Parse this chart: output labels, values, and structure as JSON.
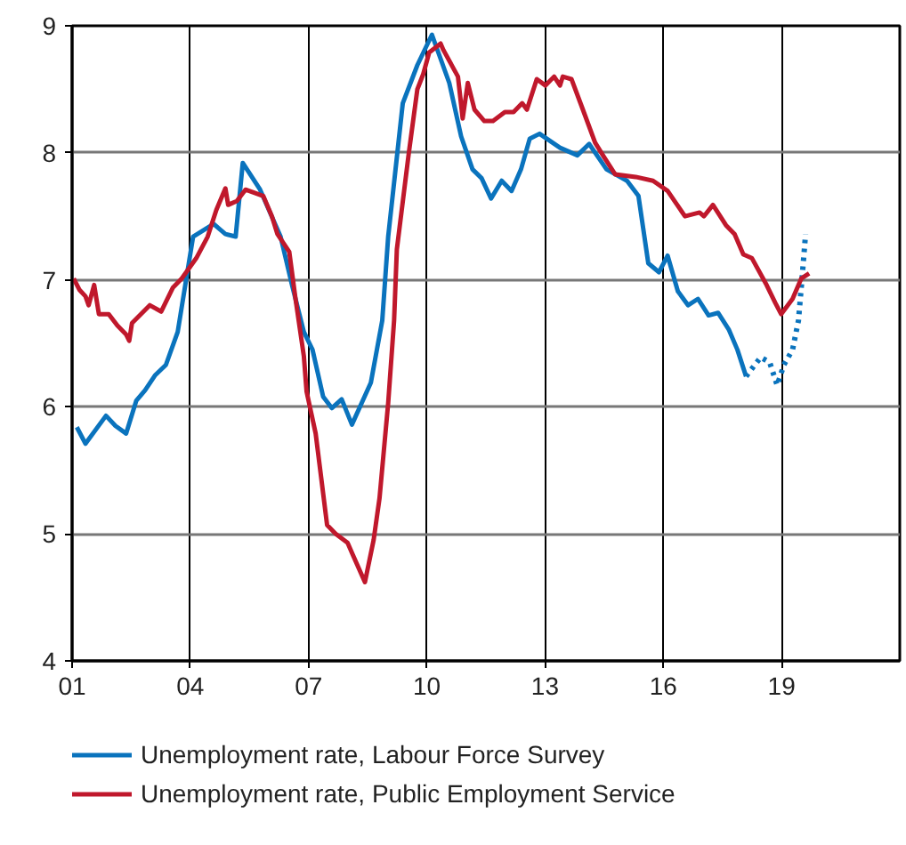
{
  "chart_data": {
    "type": "line",
    "xlim": [
      2001,
      2022
    ],
    "ylim": [
      4,
      9
    ],
    "xticks": [
      {
        "value": 2001,
        "label": "01"
      },
      {
        "value": 2004,
        "label": "04"
      },
      {
        "value": 2007,
        "label": "07"
      },
      {
        "value": 2010,
        "label": "10"
      },
      {
        "value": 2013,
        "label": "13"
      },
      {
        "value": 2016,
        "label": "16"
      },
      {
        "value": 2019,
        "label": "19"
      }
    ],
    "yticks": [
      4,
      5,
      6,
      7,
      8,
      9
    ],
    "grid": true,
    "legend": "bottom",
    "marker": "none",
    "series": [
      {
        "name": "Unemployment rate, Labour Force Survey",
        "color": "#0a73bd",
        "line_style": "solid",
        "x": [
          2001.12,
          2001.34,
          2001.86,
          2002.1,
          2002.37,
          2002.63,
          2002.85,
          2003.11,
          2003.38,
          2003.68,
          2004.07,
          2004.59,
          2004.89,
          2005.15,
          2005.33,
          2005.77,
          2006.29,
          2006.58,
          2006.88,
          2007.1,
          2007.37,
          2007.59,
          2007.84,
          2008.1,
          2008.58,
          2008.87,
          2009.02,
          2009.39,
          2009.76,
          2010.13,
          2010.57,
          2010.87,
          2011.16,
          2011.39,
          2011.63,
          2011.9,
          2012.15,
          2012.39,
          2012.61,
          2012.86,
          2013.38,
          2013.82,
          2014.12,
          2014.56,
          2015.08,
          2015.37,
          2015.62,
          2015.89,
          2016.11,
          2016.37,
          2016.63,
          2016.88,
          2017.15,
          2017.39,
          2017.66,
          2017.88,
          2018.1
        ],
        "values": [
          5.84,
          5.71,
          5.93,
          5.85,
          5.79,
          6.05,
          6.13,
          6.25,
          6.33,
          6.59,
          7.34,
          7.44,
          7.36,
          7.34,
          7.92,
          7.71,
          7.34,
          6.96,
          6.59,
          6.45,
          6.08,
          5.99,
          6.06,
          5.86,
          6.19,
          6.68,
          7.34,
          8.39,
          8.69,
          8.93,
          8.55,
          8.13,
          7.87,
          7.8,
          7.64,
          7.78,
          7.7,
          7.87,
          8.11,
          8.15,
          8.04,
          7.98,
          8.07,
          7.87,
          7.78,
          7.66,
          7.13,
          7.06,
          7.19,
          6.91,
          6.8,
          6.85,
          6.72,
          6.74,
          6.61,
          6.45,
          6.24
        ]
      },
      {
        "color": "#0a73bd",
        "line_style": "dotted",
        "x": [
          2018.1,
          2018.47,
          2018.7,
          2018.89,
          2019.06,
          2019.28,
          2019.43,
          2019.52,
          2019.61
        ],
        "values": [
          6.24,
          6.39,
          6.35,
          6.17,
          6.33,
          6.45,
          6.68,
          7.01,
          7.36
        ]
      },
      {
        "name": "Unemployment rate, Public Employment Service",
        "color": "#c0182c",
        "line_style": "solid",
        "x": [
          2001.04,
          2001.19,
          2001.34,
          2001.42,
          2001.56,
          2001.68,
          2001.93,
          2002.15,
          2002.37,
          2002.45,
          2002.52,
          2002.97,
          2003.26,
          2003.56,
          2003.78,
          2004.15,
          2004.44,
          2004.66,
          2004.89,
          2004.96,
          2005.18,
          2005.4,
          2005.85,
          2006.07,
          2006.21,
          2006.51,
          2006.66,
          2006.88,
          2006.95,
          2007.18,
          2007.47,
          2007.69,
          2007.99,
          2008.13,
          2008.43,
          2008.65,
          2008.8,
          2009.02,
          2009.17,
          2009.24,
          2009.54,
          2009.76,
          2009.91,
          2010.06,
          2010.35,
          2010.42,
          2010.79,
          2010.91,
          2011.04,
          2011.21,
          2011.46,
          2011.68,
          2011.98,
          2012.2,
          2012.42,
          2012.54,
          2012.79,
          2013.01,
          2013.23,
          2013.38,
          2013.45,
          2013.67,
          2013.96,
          2014.27,
          2014.49,
          2014.78,
          2015.3,
          2015.74,
          2016.11,
          2016.55,
          2016.92,
          2017.03,
          2017.26,
          2017.59,
          2017.81,
          2018.03,
          2018.25,
          2018.62,
          2018.84,
          2018.99,
          2019.28,
          2019.5,
          2019.7
        ],
        "values": [
          7.01,
          6.92,
          6.87,
          6.8,
          6.96,
          6.73,
          6.73,
          6.64,
          6.57,
          6.52,
          6.66,
          6.8,
          6.75,
          6.94,
          7.01,
          7.17,
          7.34,
          7.55,
          7.72,
          7.59,
          7.62,
          7.71,
          7.66,
          7.5,
          7.36,
          7.22,
          6.87,
          6.4,
          6.12,
          5.79,
          5.07,
          5.0,
          4.93,
          4.83,
          4.62,
          4.95,
          5.28,
          6.03,
          6.68,
          7.24,
          7.99,
          8.5,
          8.62,
          8.79,
          8.86,
          8.81,
          8.6,
          8.27,
          8.55,
          8.34,
          8.25,
          8.25,
          8.32,
          8.32,
          8.39,
          8.34,
          8.58,
          8.53,
          8.6,
          8.53,
          8.6,
          8.58,
          8.34,
          8.08,
          7.97,
          7.83,
          7.81,
          7.78,
          7.7,
          7.5,
          7.53,
          7.5,
          7.59,
          7.43,
          7.36,
          7.2,
          7.17,
          6.96,
          6.82,
          6.73,
          6.85,
          7.01,
          7.05
        ]
      }
    ]
  }
}
